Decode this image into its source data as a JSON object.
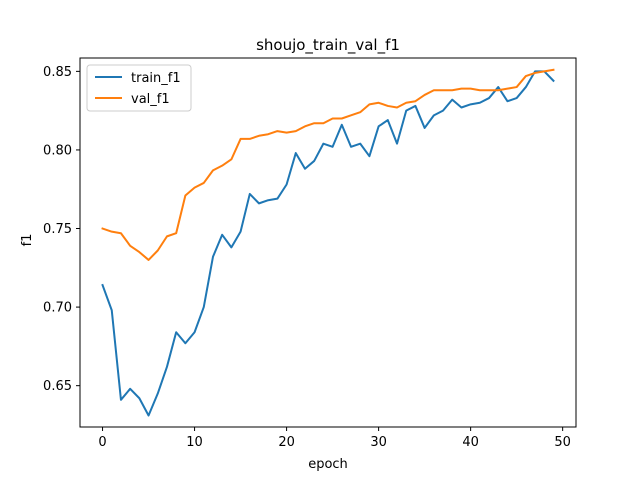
{
  "chart_data": {
    "type": "line",
    "title": "shoujo_train_val_f1",
    "xlabel": "epoch",
    "ylabel": "f1",
    "xlim": [
      -2.45,
      51.45
    ],
    "ylim": [
      0.6237,
      0.8585
    ],
    "xticks": [
      "0",
      "10",
      "20",
      "30",
      "40",
      "50"
    ],
    "xtick_values": [
      0,
      10,
      20,
      30,
      40,
      50
    ],
    "yticks": [
      "0.65",
      "0.70",
      "0.75",
      "0.80",
      "0.85"
    ],
    "ytick_values": [
      0.65,
      0.7,
      0.75,
      0.8,
      0.85
    ],
    "grid": false,
    "legend_position": "top-left",
    "x": [
      0,
      1,
      2,
      3,
      4,
      5,
      6,
      7,
      8,
      9,
      10,
      11,
      12,
      13,
      14,
      15,
      16,
      17,
      18,
      19,
      20,
      21,
      22,
      23,
      24,
      25,
      26,
      27,
      28,
      29,
      30,
      31,
      32,
      33,
      34,
      35,
      36,
      37,
      38,
      39,
      40,
      41,
      42,
      43,
      44,
      45,
      46,
      47,
      48,
      49
    ],
    "series": [
      {
        "name": "train_f1",
        "color": "#1f77b4",
        "values": [
          0.714,
          0.698,
          0.641,
          0.648,
          0.642,
          0.631,
          0.645,
          0.662,
          0.684,
          0.677,
          0.684,
          0.7,
          0.732,
          0.746,
          0.738,
          0.748,
          0.772,
          0.766,
          0.768,
          0.769,
          0.778,
          0.798,
          0.788,
          0.793,
          0.804,
          0.802,
          0.816,
          0.802,
          0.804,
          0.796,
          0.815,
          0.819,
          0.804,
          0.825,
          0.828,
          0.814,
          0.822,
          0.825,
          0.832,
          0.827,
          0.829,
          0.83,
          0.833,
          0.84,
          0.831,
          0.833,
          0.84,
          0.85,
          0.85,
          0.844
        ]
      },
      {
        "name": "val_f1",
        "color": "#ff7f0e",
        "values": [
          0.75,
          0.748,
          0.747,
          0.739,
          0.735,
          0.73,
          0.736,
          0.745,
          0.747,
          0.771,
          0.776,
          0.779,
          0.787,
          0.79,
          0.794,
          0.807,
          0.807,
          0.809,
          0.81,
          0.812,
          0.811,
          0.812,
          0.815,
          0.817,
          0.817,
          0.82,
          0.82,
          0.822,
          0.824,
          0.829,
          0.83,
          0.828,
          0.827,
          0.83,
          0.831,
          0.835,
          0.838,
          0.838,
          0.838,
          0.839,
          0.839,
          0.838,
          0.838,
          0.838,
          0.839,
          0.84,
          0.847,
          0.849,
          0.85,
          0.851
        ]
      }
    ]
  }
}
